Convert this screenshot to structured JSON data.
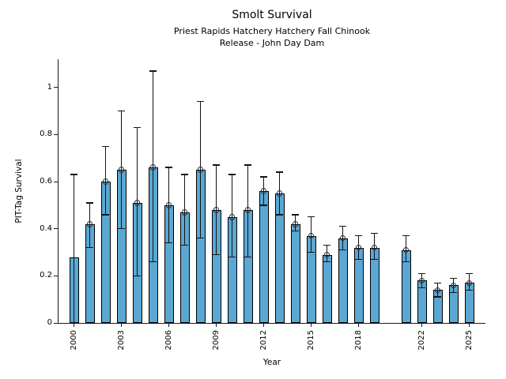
{
  "chart_data": {
    "type": "bar",
    "title": "Smolt Survival",
    "subtitle": "Priest Rapids Hatchery Hatchery Fall Chinook\nRelease - John Day Dam",
    "xlabel": "Year",
    "ylabel": "PIT-Tag Survival",
    "ylim": [
      0,
      1.12
    ],
    "yticks": [
      0,
      0.2,
      0.4,
      0.6,
      0.8,
      1
    ],
    "xticks": [
      2000,
      2003,
      2006,
      2009,
      2012,
      2015,
      2018,
      2022,
      2025
    ],
    "grid": false,
    "legend": "none",
    "background_color": "#ffffff",
    "bar_color": "#5BA7D4",
    "bar_edge_color": "#000000",
    "error_bar_color": "#141414",
    "marker_style": "open-circle",
    "missing_years": [
      2020
    ],
    "points": [
      {
        "year": 2000,
        "value": 0.28,
        "lo": 0.0,
        "hi": 0.63,
        "marker": false
      },
      {
        "year": 2001,
        "value": 0.42,
        "lo": 0.32,
        "hi": 0.51,
        "marker": true
      },
      {
        "year": 2002,
        "value": 0.6,
        "lo": 0.46,
        "hi": 0.75,
        "marker": true
      },
      {
        "year": 2003,
        "value": 0.65,
        "lo": 0.4,
        "hi": 0.9,
        "marker": true
      },
      {
        "year": 2004,
        "value": 0.51,
        "lo": 0.2,
        "hi": 0.83,
        "marker": true
      },
      {
        "year": 2005,
        "value": 0.66,
        "lo": 0.26,
        "hi": 1.07,
        "marker": true
      },
      {
        "year": 2006,
        "value": 0.5,
        "lo": 0.34,
        "hi": 0.66,
        "marker": true
      },
      {
        "year": 2007,
        "value": 0.47,
        "lo": 0.33,
        "hi": 0.63,
        "marker": true
      },
      {
        "year": 2008,
        "value": 0.65,
        "lo": 0.36,
        "hi": 0.94,
        "marker": true
      },
      {
        "year": 2009,
        "value": 0.48,
        "lo": 0.29,
        "hi": 0.67,
        "marker": true
      },
      {
        "year": 2010,
        "value": 0.45,
        "lo": 0.28,
        "hi": 0.63,
        "marker": true
      },
      {
        "year": 2011,
        "value": 0.48,
        "lo": 0.28,
        "hi": 0.67,
        "marker": true
      },
      {
        "year": 2012,
        "value": 0.56,
        "lo": 0.5,
        "hi": 0.62,
        "marker": true
      },
      {
        "year": 2013,
        "value": 0.55,
        "lo": 0.46,
        "hi": 0.64,
        "marker": true
      },
      {
        "year": 2014,
        "value": 0.42,
        "lo": 0.39,
        "hi": 0.46,
        "marker": true
      },
      {
        "year": 2015,
        "value": 0.37,
        "lo": 0.3,
        "hi": 0.45,
        "marker": true
      },
      {
        "year": 2016,
        "value": 0.29,
        "lo": 0.26,
        "hi": 0.33,
        "marker": true
      },
      {
        "year": 2017,
        "value": 0.36,
        "lo": 0.31,
        "hi": 0.41,
        "marker": true
      },
      {
        "year": 2018,
        "value": 0.32,
        "lo": 0.27,
        "hi": 0.37,
        "marker": true
      },
      {
        "year": 2019,
        "value": 0.32,
        "lo": 0.27,
        "hi": 0.38,
        "marker": true
      },
      {
        "year": 2021,
        "value": 0.31,
        "lo": 0.26,
        "hi": 0.37,
        "marker": true
      },
      {
        "year": 2022,
        "value": 0.18,
        "lo": 0.15,
        "hi": 0.21,
        "marker": true
      },
      {
        "year": 2023,
        "value": 0.14,
        "lo": 0.11,
        "hi": 0.17,
        "marker": true
      },
      {
        "year": 2024,
        "value": 0.16,
        "lo": 0.13,
        "hi": 0.19,
        "marker": true
      },
      {
        "year": 2025,
        "value": 0.17,
        "lo": 0.14,
        "hi": 0.21,
        "marker": true
      }
    ]
  }
}
